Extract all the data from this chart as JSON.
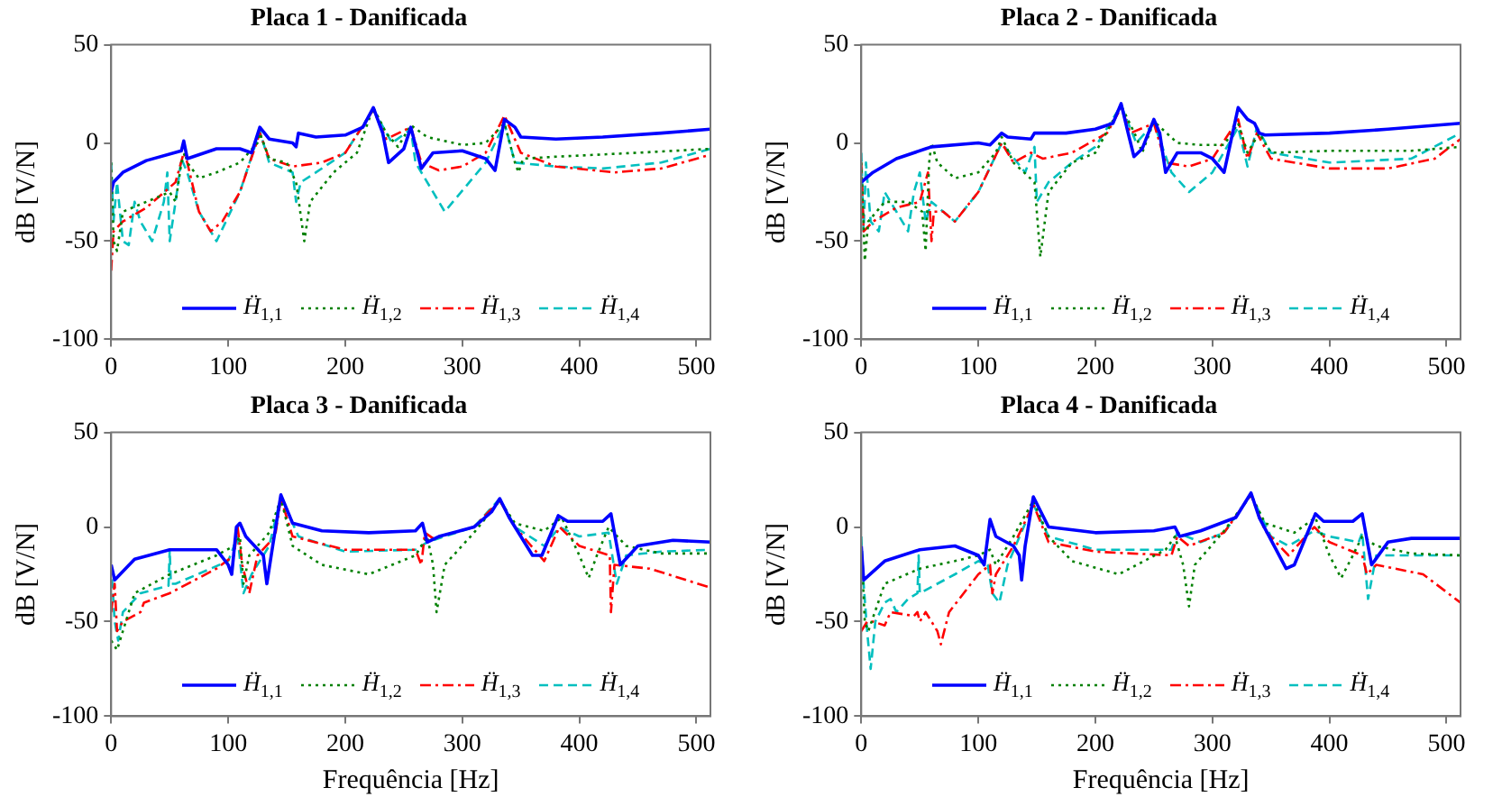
{
  "chart_data": [
    {
      "type": "line",
      "title": "Placa 1 - Danificada",
      "ylabel": "dB [V/N]",
      "xlim": [
        0,
        512
      ],
      "xticks": [
        0,
        100,
        200,
        300,
        400,
        500
      ],
      "ylim": [
        -100,
        50
      ],
      "yticks": [
        -100,
        -50,
        0,
        50
      ],
      "legend": "bottom",
      "series": [
        {
          "name": "Ḧ$_{1,1}$",
          "color": "#0000ff",
          "line_style": "solid",
          "x": [
            0,
            2,
            10,
            30,
            60,
            62,
            65,
            90,
            110,
            120,
            127,
            135,
            155,
            158,
            160,
            175,
            200,
            215,
            224,
            232,
            237,
            250,
            256,
            265,
            275,
            300,
            320,
            328,
            336,
            345,
            350,
            380,
            420,
            470,
            512
          ],
          "values": [
            -25,
            -20,
            -15,
            -9,
            -4,
            1,
            -8,
            -3,
            -3,
            -5,
            8,
            2,
            0,
            -2,
            5,
            3,
            4,
            8,
            18,
            5,
            -10,
            -3,
            8,
            -13,
            -5,
            -4,
            -8,
            -14,
            12,
            8,
            3,
            2,
            3,
            5,
            7
          ]
        },
        {
          "name": "Ḧ$_{1,2}$",
          "color": "#008000",
          "line_style": "dotted",
          "x": [
            0,
            2,
            5,
            10,
            30,
            50,
            55,
            60,
            63,
            65,
            75,
            90,
            110,
            125,
            127,
            135,
            150,
            158,
            165,
            170,
            190,
            210,
            224,
            235,
            245,
            256,
            270,
            300,
            320,
            336,
            345,
            348,
            352,
            380,
            450,
            512
          ],
          "values": [
            -10,
            -50,
            -55,
            -35,
            -30,
            -25,
            -30,
            -10,
            -5,
            -10,
            -18,
            -15,
            -10,
            0,
            5,
            -8,
            -10,
            -20,
            -50,
            -30,
            -15,
            -5,
            18,
            5,
            -2,
            9,
            3,
            -1,
            0,
            10,
            -10,
            -15,
            -8,
            -7,
            -5,
            -3
          ]
        },
        {
          "name": "Ḧ$_{1,3}$",
          "color": "#ff0000",
          "line_style": "dashdot",
          "x": [
            0,
            2,
            10,
            30,
            55,
            62,
            65,
            75,
            85,
            95,
            110,
            127,
            135,
            155,
            180,
            200,
            224,
            235,
            256,
            265,
            280,
            300,
            320,
            336,
            350,
            380,
            430,
            470,
            512
          ],
          "values": [
            -65,
            -45,
            -40,
            -33,
            -20,
            -5,
            -10,
            -35,
            -45,
            -40,
            -25,
            5,
            -8,
            -12,
            -10,
            -5,
            17,
            2,
            8,
            -10,
            -14,
            -12,
            -5,
            14,
            -5,
            -12,
            -15,
            -13,
            -6
          ]
        },
        {
          "name": "Ḧ$_{1,4}$",
          "color": "#00bfbf",
          "line_style": "dashed",
          "x": [
            0,
            2,
            5,
            10,
            15,
            20,
            25,
            35,
            45,
            48,
            50,
            55,
            60,
            65,
            75,
            90,
            110,
            127,
            135,
            155,
            158,
            162,
            175,
            200,
            224,
            240,
            256,
            260,
            285,
            320,
            336,
            345,
            380,
            420,
            470,
            512
          ],
          "values": [
            -10,
            -40,
            -20,
            -50,
            -52,
            -30,
            -40,
            -50,
            -30,
            -15,
            -50,
            -30,
            -8,
            -15,
            -35,
            -50,
            -25,
            6,
            -10,
            -15,
            -30,
            -20,
            -15,
            -5,
            17,
            0,
            7,
            -10,
            -35,
            -10,
            10,
            -10,
            -12,
            -13,
            -10,
            -3
          ]
        }
      ]
    },
    {
      "type": "line",
      "title": "Placa 2 - Danificada",
      "ylabel": "dB [V/N]",
      "xlim": [
        0,
        512
      ],
      "xticks": [
        0,
        100,
        200,
        300,
        400,
        500
      ],
      "ylim": [
        -100,
        50
      ],
      "yticks": [
        -100,
        -50,
        0,
        50
      ],
      "legend": "bottom",
      "series": [
        {
          "name": "Ḧ$_{1,1}$",
          "color": "#0000ff",
          "line_style": "solid",
          "x": [
            0,
            10,
            30,
            55,
            60,
            100,
            110,
            120,
            125,
            145,
            148,
            175,
            200,
            215,
            222,
            228,
            233,
            240,
            250,
            255,
            260,
            270,
            290,
            300,
            310,
            322,
            330,
            336,
            340,
            345,
            400,
            450,
            512
          ],
          "values": [
            -20,
            -15,
            -8,
            -3,
            -2,
            0,
            -1,
            5,
            3,
            2,
            5,
            5,
            7,
            10,
            20,
            5,
            -7,
            -3,
            12,
            5,
            -15,
            -5,
            -5,
            -8,
            -15,
            18,
            12,
            10,
            5,
            4,
            5,
            7,
            10
          ]
        },
        {
          "name": "Ḧ$_{1,2}$",
          "color": "#008000",
          "line_style": "dotted",
          "x": [
            0,
            3,
            6,
            20,
            40,
            52,
            55,
            58,
            60,
            65,
            80,
            100,
            115,
            120,
            130,
            148,
            153,
            160,
            180,
            200,
            222,
            235,
            240,
            250,
            270,
            290,
            310,
            322,
            330,
            340,
            350,
            400,
            470,
            512
          ],
          "values": [
            -10,
            -60,
            -40,
            -30,
            -30,
            -35,
            -55,
            -10,
            0,
            -10,
            -18,
            -15,
            -5,
            3,
            -10,
            -20,
            -58,
            -25,
            -10,
            -5,
            19,
            3,
            -5,
            11,
            0,
            -1,
            -1,
            10,
            -5,
            5,
            -5,
            -4,
            -4,
            -2
          ]
        },
        {
          "name": "Ḧ$_{1,3}$",
          "color": "#ff0000",
          "line_style": "dashdot",
          "x": [
            0,
            2,
            10,
            30,
            50,
            57,
            60,
            62,
            70,
            80,
            100,
            120,
            130,
            145,
            155,
            180,
            210,
            222,
            230,
            250,
            260,
            280,
            300,
            322,
            330,
            338,
            350,
            400,
            450,
            490,
            512
          ],
          "values": [
            -10,
            -45,
            -40,
            -33,
            -30,
            -15,
            -50,
            -35,
            -35,
            -40,
            -25,
            0,
            -10,
            -5,
            -8,
            -5,
            5,
            18,
            5,
            10,
            -10,
            -12,
            -8,
            12,
            -8,
            5,
            -8,
            -13,
            -13,
            -8,
            2
          ]
        },
        {
          "name": "Ḧ$_{1,4}$",
          "color": "#00bfbf",
          "line_style": "dashed",
          "x": [
            0,
            2,
            4,
            8,
            15,
            20,
            30,
            40,
            45,
            50,
            55,
            60,
            70,
            80,
            100,
            120,
            140,
            148,
            150,
            160,
            180,
            200,
            222,
            235,
            250,
            265,
            280,
            300,
            322,
            330,
            338,
            350,
            400,
            470,
            512
          ],
          "values": [
            -5,
            -45,
            -10,
            -40,
            -45,
            -25,
            -35,
            -45,
            -25,
            -15,
            -40,
            -30,
            -35,
            -40,
            -25,
            0,
            -15,
            -2,
            -30,
            -20,
            -10,
            -2,
            19,
            0,
            10,
            -15,
            -25,
            -15,
            8,
            -12,
            8,
            -5,
            -10,
            -8,
            5
          ]
        }
      ]
    },
    {
      "type": "line",
      "title": "Placa 3 - Danificada",
      "xlabel": "Frequência [Hz]",
      "ylabel": "dB [V/N]",
      "xlim": [
        0,
        512
      ],
      "xticks": [
        0,
        100,
        200,
        300,
        400,
        500
      ],
      "ylim": [
        -100,
        50
      ],
      "yticks": [
        -100,
        -50,
        0,
        50
      ],
      "legend": "bottom",
      "series": [
        {
          "name": "Ḧ$_{1,1}$",
          "color": "#0000ff",
          "line_style": "solid",
          "x": [
            0,
            3,
            20,
            50,
            90,
            100,
            103,
            107,
            110,
            115,
            130,
            133,
            138,
            145,
            155,
            180,
            220,
            260,
            266,
            270,
            280,
            310,
            325,
            332,
            340,
            360,
            368,
            382,
            390,
            420,
            427,
            435,
            450,
            480,
            512
          ],
          "values": [
            -20,
            -28,
            -17,
            -12,
            -12,
            -20,
            -25,
            0,
            2,
            -5,
            -15,
            -30,
            -10,
            17,
            2,
            -2,
            -3,
            -2,
            2,
            -8,
            -5,
            0,
            8,
            15,
            5,
            -15,
            -15,
            6,
            3,
            3,
            7,
            -20,
            -10,
            -7,
            -8
          ]
        },
        {
          "name": "Ḧ$_{1,2}$",
          "color": "#008000",
          "line_style": "dotted",
          "x": [
            0,
            5,
            20,
            50,
            90,
            105,
            110,
            113,
            118,
            135,
            145,
            155,
            180,
            220,
            260,
            270,
            275,
            278,
            285,
            310,
            332,
            345,
            370,
            385,
            400,
            408,
            415,
            425,
            440,
            470,
            512
          ],
          "values": [
            -60,
            -65,
            -35,
            -25,
            -15,
            -10,
            -5,
            -30,
            -15,
            -3,
            15,
            -10,
            -20,
            -25,
            -15,
            -5,
            -20,
            -45,
            -20,
            -3,
            14,
            2,
            -2,
            5,
            -15,
            -27,
            -15,
            0,
            -10,
            -14,
            -14
          ]
        },
        {
          "name": "Ḧ$_{1,3}$",
          "color": "#ff0000",
          "line_style": "dashdot",
          "x": [
            0,
            3,
            5,
            10,
            25,
            28,
            50,
            90,
            105,
            108,
            112,
            118,
            125,
            140,
            145,
            155,
            200,
            260,
            265,
            268,
            275,
            310,
            332,
            345,
            370,
            383,
            400,
            426,
            427,
            430,
            460,
            512
          ],
          "values": [
            -45,
            -30,
            -55,
            -50,
            -45,
            -40,
            -35,
            -22,
            -15,
            0,
            -20,
            -35,
            -15,
            -5,
            15,
            -5,
            -12,
            -12,
            -20,
            -3,
            -6,
            0,
            14,
            0,
            -18,
            0,
            -10,
            -15,
            -45,
            -20,
            -22,
            -32
          ]
        },
        {
          "name": "Ḧ$_{1,4}$",
          "color": "#00bfbf",
          "line_style": "dashed",
          "x": [
            0,
            3,
            6,
            10,
            25,
            49,
            50,
            51,
            55,
            100,
            108,
            113,
            120,
            135,
            145,
            160,
            200,
            260,
            270,
            310,
            332,
            345,
            370,
            383,
            400,
            425,
            432,
            440,
            470,
            512
          ],
          "values": [
            -20,
            -50,
            -60,
            -45,
            -35,
            -31,
            -12,
            -30,
            -30,
            -18,
            -5,
            -35,
            -25,
            -10,
            16,
            -5,
            -13,
            -12,
            -8,
            0,
            15,
            0,
            -10,
            0,
            -5,
            -3,
            -30,
            -15,
            -13,
            -12
          ]
        }
      ]
    },
    {
      "type": "line",
      "title": "Placa 4 - Danificada",
      "xlabel": "Frequência [Hz]",
      "ylabel": "dB [V/N]",
      "xlim": [
        0,
        512
      ],
      "xticks": [
        0,
        100,
        200,
        300,
        400,
        500
      ],
      "ylim": [
        -100,
        50
      ],
      "yticks": [
        -100,
        -50,
        0,
        50
      ],
      "legend": "bottom",
      "series": [
        {
          "name": "Ḧ$_{1,1}$",
          "color": "#0000ff",
          "line_style": "solid",
          "x": [
            0,
            2,
            20,
            50,
            80,
            100,
            105,
            110,
            115,
            130,
            135,
            137,
            140,
            147,
            160,
            200,
            250,
            268,
            272,
            290,
            320,
            333,
            340,
            363,
            370,
            388,
            395,
            420,
            428,
            433,
            436,
            450,
            470,
            512
          ],
          "values": [
            -10,
            -28,
            -18,
            -12,
            -10,
            -15,
            -20,
            4,
            -5,
            -10,
            -15,
            -28,
            -10,
            16,
            0,
            -3,
            -2,
            0,
            -5,
            -2,
            5,
            18,
            5,
            -22,
            -20,
            7,
            3,
            3,
            7,
            -10,
            -20,
            -8,
            -6,
            -6
          ]
        },
        {
          "name": "Ḧ$_{1,2}$",
          "color": "#008000",
          "line_style": "dotted",
          "x": [
            0,
            3,
            6,
            20,
            50,
            80,
            100,
            110,
            115,
            130,
            147,
            160,
            180,
            220,
            260,
            268,
            275,
            280,
            285,
            310,
            333,
            345,
            370,
            388,
            400,
            410,
            420,
            428,
            440,
            470,
            512
          ],
          "values": [
            -10,
            -50,
            -55,
            -30,
            -22,
            -18,
            -15,
            -12,
            -20,
            -5,
            14,
            -5,
            -18,
            -25,
            -12,
            -5,
            -20,
            -42,
            -20,
            -2,
            17,
            2,
            -3,
            5,
            -15,
            -27,
            -15,
            -5,
            -10,
            -14,
            -15
          ]
        },
        {
          "name": "Ḧ$_{1,3}$",
          "color": "#ff0000",
          "line_style": "dashdot",
          "x": [
            0,
            5,
            10,
            20,
            25,
            45,
            48,
            50,
            55,
            65,
            68,
            75,
            100,
            110,
            112,
            115,
            130,
            147,
            160,
            200,
            265,
            270,
            280,
            310,
            333,
            345,
            365,
            387,
            400,
            428,
            432,
            440,
            480,
            512
          ],
          "values": [
            -55,
            -50,
            -50,
            -52,
            -45,
            -47,
            -45,
            -50,
            -45,
            -55,
            -62,
            -45,
            -25,
            -20,
            -35,
            -25,
            -10,
            12,
            -8,
            -13,
            -15,
            -5,
            -10,
            -3,
            17,
            -2,
            -15,
            0,
            -8,
            -15,
            -25,
            -20,
            -25,
            -40
          ]
        },
        {
          "name": "Ḧ$_{1,4}$",
          "color": "#00bfbf",
          "line_style": "dashed",
          "x": [
            0,
            2,
            5,
            8,
            12,
            20,
            25,
            30,
            40,
            48,
            49,
            50,
            80,
            100,
            108,
            112,
            118,
            125,
            147,
            160,
            200,
            265,
            270,
            290,
            310,
            333,
            350,
            365,
            387,
            400,
            425,
            428,
            433,
            440,
            470,
            512
          ],
          "values": [
            -5,
            -30,
            -55,
            -75,
            -50,
            -40,
            -38,
            -45,
            -38,
            -35,
            -15,
            -35,
            -25,
            -18,
            -20,
            -35,
            -40,
            -20,
            12,
            -5,
            -12,
            -12,
            -3,
            -8,
            -3,
            17,
            -5,
            -10,
            -2,
            -5,
            -8,
            -3,
            -38,
            -15,
            -15,
            -15
          ]
        }
      ]
    }
  ]
}
